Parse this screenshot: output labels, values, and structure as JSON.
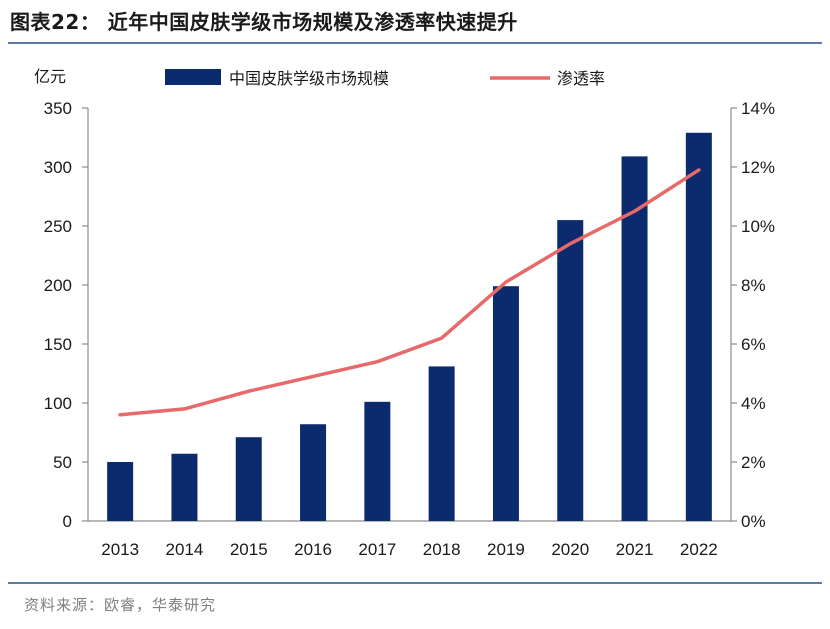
{
  "title": "图表22：  近年中国皮肤学级市场规模及渗透率快速提升",
  "source": "资料来源：欧睿，华泰研究",
  "chart_data": {
    "type": "bar",
    "categories": [
      "2013",
      "2014",
      "2015",
      "2016",
      "2017",
      "2018",
      "2019",
      "2020",
      "2021",
      "2022"
    ],
    "series": [
      {
        "name": "中国皮肤学级市场规模",
        "kind": "bar",
        "axis": "left",
        "values": [
          50,
          57,
          71,
          82,
          101,
          131,
          199,
          255,
          309,
          329
        ],
        "color": "#0c2a6e"
      },
      {
        "name": "渗透率",
        "kind": "line",
        "axis": "right",
        "values": [
          3.6,
          3.8,
          4.4,
          4.9,
          5.4,
          6.2,
          8.1,
          9.4,
          10.5,
          11.9
        ],
        "color": "#e8696a"
      }
    ],
    "ylabel": "亿元",
    "ylim": [
      0,
      350
    ],
    "yticks": [
      0,
      50,
      100,
      150,
      200,
      250,
      300,
      350
    ],
    "y2lim": [
      0,
      14
    ],
    "y2ticks": [
      "0%",
      "2%",
      "4%",
      "6%",
      "8%",
      "10%",
      "12%",
      "14%"
    ],
    "legend": "top-center",
    "grid": false
  }
}
